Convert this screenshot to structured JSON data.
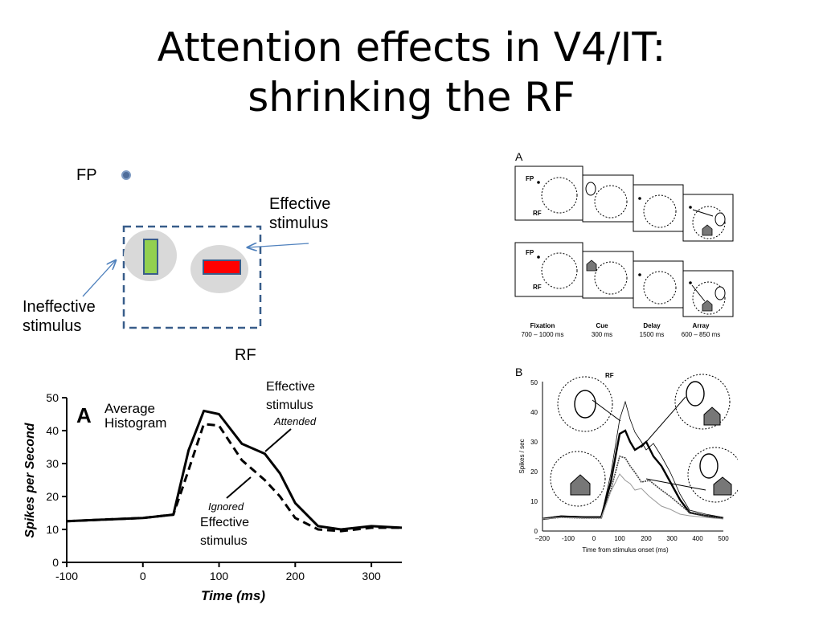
{
  "slide": {
    "title_line1": "Attention effects in V4/IT:",
    "title_line2": "shrinking the RF"
  },
  "diagram": {
    "fp_label": "FP",
    "effective_label_line1": "Effective",
    "effective_label_line2": "stimulus",
    "ineffective_label_line1": "Ineffective",
    "ineffective_label_line2": "stimulus",
    "rf_label": "RF",
    "colors": {
      "rf_box": "#385d8a",
      "ineffective_bar": "#92d050",
      "effective_bar": "#ff0000",
      "blob": "#d9d9d9"
    }
  },
  "histogram": {
    "panel_letter": "A",
    "title_line1": "Average",
    "title_line2": "Histogram",
    "attended_label_line1": "Effective",
    "attended_label_line2": "stimulus",
    "attended_tag": "Attended",
    "ignored_tag": "Ignored",
    "ignored_label_line1": "Effective",
    "ignored_label_line2": "stimulus",
    "xlabel": "Time (ms)",
    "ylabel": "Spikes per Second"
  },
  "chart_data": {
    "type": "line",
    "x_ticks": [
      -100,
      0,
      100,
      200,
      300
    ],
    "y_ticks": [
      0,
      10,
      20,
      30,
      40,
      50
    ],
    "xlim": [
      -100,
      340
    ],
    "ylim": [
      0,
      50
    ],
    "series": [
      {
        "name": "Attended",
        "style": "solid",
        "x": [
          -100,
          -50,
          0,
          40,
          60,
          80,
          100,
          130,
          160,
          180,
          200,
          230,
          260,
          300,
          340
        ],
        "y": [
          12.5,
          13,
          13.5,
          14.5,
          34,
          46,
          45,
          36,
          33,
          27,
          18,
          11,
          10,
          11,
          10.5
        ]
      },
      {
        "name": "Ignored",
        "style": "dashed",
        "x": [
          -100,
          -50,
          0,
          40,
          60,
          80,
          100,
          130,
          160,
          180,
          200,
          230,
          260,
          300,
          340
        ],
        "y": [
          12.5,
          13,
          13.5,
          14.5,
          28,
          42,
          41.5,
          31,
          25,
          20,
          13.5,
          10,
          9.5,
          10.5,
          10.5
        ]
      }
    ]
  },
  "figure_a": {
    "panel_letter": "A",
    "fp_label": "FP",
    "rf_label": "RF",
    "phases": [
      "Fixation",
      "Cue",
      "Delay",
      "Array"
    ],
    "durations": [
      "700 – 1000 ms",
      "300 ms",
      "1500 ms",
      "600 – 850 ms"
    ]
  },
  "figure_b": {
    "panel_letter": "B",
    "rf_label": "RF",
    "ylabel": "Spikes / sec",
    "xlabel": "Time from stimulus onset (ms)",
    "y_ticks": [
      "50",
      "40",
      "30",
      "20",
      "10",
      "0"
    ],
    "x_ticks": [
      "–200",
      "-100",
      "0",
      "100",
      "200",
      "300",
      "400",
      "500"
    ]
  }
}
